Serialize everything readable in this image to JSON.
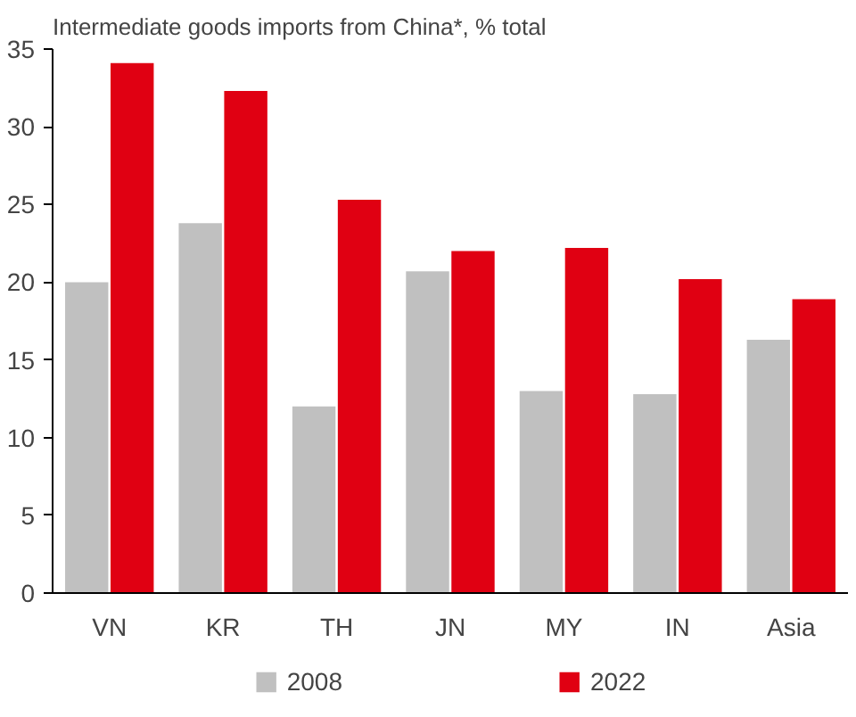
{
  "chart_data": {
    "type": "bar",
    "title": "Intermediate goods imports from China*, % total",
    "categories": [
      "VN",
      "KR",
      "TH",
      "JN",
      "MY",
      "IN",
      "Asia"
    ],
    "series": [
      {
        "name": "2008",
        "color": "#c0c0c0",
        "values": [
          20.0,
          23.8,
          12.0,
          20.7,
          13.0,
          12.8,
          16.3
        ]
      },
      {
        "name": "2022",
        "color": "#e00012",
        "values": [
          34.1,
          32.3,
          25.3,
          22.0,
          22.2,
          20.2,
          18.9
        ]
      }
    ],
    "ylim": [
      0,
      35
    ],
    "yticks": [
      0,
      5,
      10,
      15,
      20,
      25,
      30,
      35
    ],
    "grid": false,
    "legend": "bottom"
  }
}
